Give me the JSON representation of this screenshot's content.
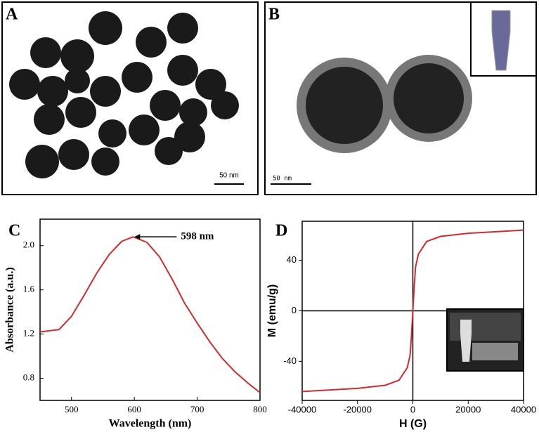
{
  "images": [
    {
      "label": "A",
      "scale_bar": "50 nm"
    },
    {
      "label": "B",
      "scale_bar": "50 nm"
    }
  ],
  "chart_data": [
    {
      "type": "line",
      "label": "C",
      "xlabel": "Wavelength (nm)",
      "ylabel": "Absorbance (a.u.)",
      "annotation": "598 nm",
      "x": [
        450,
        480,
        500,
        520,
        540,
        560,
        580,
        598,
        620,
        640,
        660,
        680,
        700,
        720,
        740,
        760,
        780,
        800
      ],
      "values": [
        1.22,
        1.24,
        1.36,
        1.55,
        1.75,
        1.92,
        2.04,
        2.08,
        2.03,
        1.9,
        1.7,
        1.48,
        1.3,
        1.13,
        0.98,
        0.86,
        0.76,
        0.67
      ],
      "color": "#d42a2a",
      "xlim": [
        450,
        800
      ],
      "xticks": [
        500,
        600,
        700,
        800
      ],
      "ylim": [
        0.6,
        2.24
      ],
      "yticks": [
        0.8,
        1.2,
        1.6,
        {
          "value": 2,
          "label": "2.0"
        }
      ],
      "zero_lines": false
    },
    {
      "type": "line",
      "label": "D",
      "xlabel": "H (G)",
      "ylabel": "M (emu/g)",
      "x": [
        -40000,
        -20000,
        -10000,
        -5000,
        -2000,
        -1000,
        -500,
        0,
        500,
        1000,
        2000,
        5000,
        10000,
        20000,
        40000
      ],
      "values": [
        -64,
        -61.5,
        -59,
        -55,
        -45,
        -35,
        -20,
        0,
        20,
        35,
        45,
        55,
        59,
        61.5,
        64
      ],
      "color": "#d42a2a",
      "xlim": [
        -40000,
        40000
      ],
      "xticks": [
        -40000,
        -20000,
        0,
        20000,
        40000
      ],
      "ylim": [
        -71,
        71
      ],
      "yticks": [
        -40,
        0,
        40
      ],
      "zero_lines": true
    }
  ]
}
